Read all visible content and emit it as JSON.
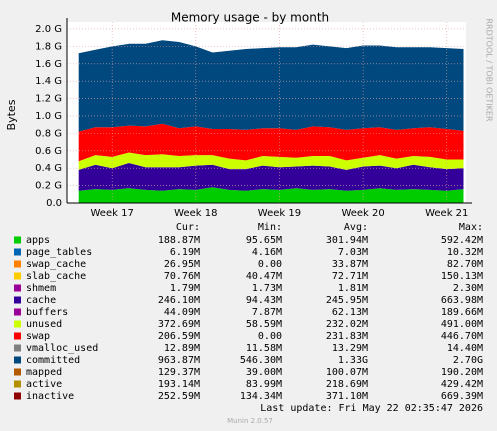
{
  "chart_data": {
    "type": "area",
    "stacked": true,
    "grid": true,
    "title": "Memory usage - by month",
    "y_label": "Bytes",
    "watermark": "RRDTOOL / TOBI OETIKER",
    "x": [
      16.6,
      16.8,
      17.0,
      17.2,
      17.4,
      17.6,
      17.8,
      18.0,
      18.2,
      18.4,
      18.6,
      18.8,
      19.0,
      19.2,
      19.4,
      19.6,
      19.8,
      20.0,
      20.2,
      20.4,
      20.6,
      20.8,
      21.0,
      21.2
    ],
    "xlim": [
      16.46,
      21.23
    ],
    "xticks": [
      {
        "value": 17,
        "label": "Week 17"
      },
      {
        "value": 18,
        "label": "Week 18"
      },
      {
        "value": 19,
        "label": "Week 19"
      },
      {
        "value": 20,
        "label": "Week 20"
      },
      {
        "value": 21,
        "label": "Week 21"
      }
    ],
    "ylim": [
      0,
      2080000000
    ],
    "yticks": [
      {
        "value": 0,
        "label": "0.0"
      },
      {
        "value": 200000000,
        "label": "0.2 G"
      },
      {
        "value": 400000000,
        "label": "0.4 G"
      },
      {
        "value": 600000000,
        "label": "0.6 G"
      },
      {
        "value": 800000000,
        "label": "0.8 G"
      },
      {
        "value": 1000000000,
        "label": "1.0 G"
      },
      {
        "value": 1200000000,
        "label": "1.2 G"
      },
      {
        "value": 1400000000,
        "label": "1.4 G"
      },
      {
        "value": 1600000000,
        "label": "1.6 G"
      },
      {
        "value": 1800000000,
        "label": "1.8 G"
      },
      {
        "value": 2000000000,
        "label": "2.0 G"
      }
    ],
    "stat_headers": [
      "Cur:",
      "Min:",
      "Avg:",
      "Max:"
    ],
    "series": [
      {
        "name": "apps",
        "color": "#00cc00",
        "stats": [
          "188.87M",
          "95.65M",
          "301.94M",
          "592.42M"
        ],
        "values": [
          140000000.0,
          160000000.0,
          150000000.0,
          170000000.0,
          150000000.0,
          140000000.0,
          160000000.0,
          150000000.0,
          180000000.0,
          150000000.0,
          140000000.0,
          160000000.0,
          150000000.0,
          170000000.0,
          150000000.0,
          160000000.0,
          140000000.0,
          150000000.0,
          170000000.0,
          150000000.0,
          160000000.0,
          150000000.0,
          140000000.0,
          160000000.0
        ]
      },
      {
        "name": "page_tables",
        "color": "#0066b3",
        "stats": [
          "6.19M",
          "4.16M",
          "7.03M",
          "10.32M"
        ]
      },
      {
        "name": "swap_cache",
        "color": "#ff8000",
        "stats": [
          "26.95M",
          "0.00",
          "33.87M",
          "82.70M"
        ]
      },
      {
        "name": "slab_cache",
        "color": "#ffcc00",
        "stats": [
          "70.76M",
          "40.47M",
          "72.71M",
          "150.13M"
        ]
      },
      {
        "name": "shmem",
        "color": "#990099",
        "stats": [
          "1.79M",
          "1.73M",
          "1.81M",
          "2.30M"
        ]
      },
      {
        "name": "cache",
        "color": "#330099",
        "stats": [
          "246.10M",
          "94.43M",
          "245.95M",
          "663.98M"
        ],
        "values": [
          240000000.0,
          280000000.0,
          250000000.0,
          290000000.0,
          260000000.0,
          270000000.0,
          250000000.0,
          280000000.0,
          260000000.0,
          240000000.0,
          250000000.0,
          270000000.0,
          260000000.0,
          250000000.0,
          280000000.0,
          260000000.0,
          240000000.0,
          270000000.0,
          260000000.0,
          250000000.0,
          280000000.0,
          260000000.0,
          250000000.0,
          240000000.0
        ]
      },
      {
        "name": "buffers",
        "color": "#990099",
        "stats": [
          "44.09M",
          "7.87M",
          "62.13M",
          "189.66M"
        ]
      },
      {
        "name": "unused",
        "color": "#ccff00",
        "stats": [
          "372.69M",
          "58.59M",
          "232.02M",
          "491.00M"
        ],
        "values": [
          100000000.0,
          110000000.0,
          130000000.0,
          120000000.0,
          140000000.0,
          150000000.0,
          130000000.0,
          120000000.0,
          110000000.0,
          120000000.0,
          100000000.0,
          110000000.0,
          120000000.0,
          100000000.0,
          110000000.0,
          120000000.0,
          110000000.0,
          100000000.0,
          120000000.0,
          110000000.0,
          100000000.0,
          120000000.0,
          110000000.0,
          100000000.0
        ]
      },
      {
        "name": "swap",
        "color": "#ff0000",
        "stats": [
          "206.59M",
          "0.00",
          "231.83M",
          "446.70M"
        ],
        "values": [
          340000000.0,
          320000000.0,
          340000000.0,
          310000000.0,
          330000000.0,
          350000000.0,
          320000000.0,
          330000000.0,
          300000000.0,
          340000000.0,
          350000000.0,
          320000000.0,
          330000000.0,
          320000000.0,
          340000000.0,
          330000000.0,
          350000000.0,
          340000000.0,
          320000000.0,
          330000000.0,
          320000000.0,
          340000000.0,
          350000000.0,
          330000000.0
        ]
      },
      {
        "name": "vmalloc_used",
        "color": "#808080",
        "stats": [
          "12.89M",
          "11.58M",
          "13.29M",
          "14.40M"
        ]
      },
      {
        "name": "committed",
        "color": "#00487d",
        "stats": [
          "963.87M",
          "546.30M",
          "1.33G",
          "2.70G"
        ],
        "values": [
          900000000.0,
          890000000.0,
          930000000.0,
          940000000.0,
          950000000.0,
          960000000.0,
          990000000.0,
          920000000.0,
          880000000.0,
          900000000.0,
          930000000.0,
          920000000.0,
          930000000.0,
          950000000.0,
          940000000.0,
          930000000.0,
          940000000.0,
          950000000.0,
          940000000.0,
          950000000.0,
          930000000.0,
          920000000.0,
          930000000.0,
          940000000.0
        ]
      },
      {
        "name": "mapped",
        "color": "#b35a00",
        "stats": [
          "129.37M",
          "39.00M",
          "100.07M",
          "190.20M"
        ]
      },
      {
        "name": "active",
        "color": "#b38f00",
        "stats": [
          "193.14M",
          "83.99M",
          "218.69M",
          "429.42M"
        ]
      },
      {
        "name": "inactive",
        "color": "#8f0000",
        "stats": [
          "252.59M",
          "134.34M",
          "371.10M",
          "669.39M"
        ]
      }
    ],
    "last_update": "Last update: Fri May 22 02:35:47 2026",
    "footer": "Munin 2.0.57"
  }
}
